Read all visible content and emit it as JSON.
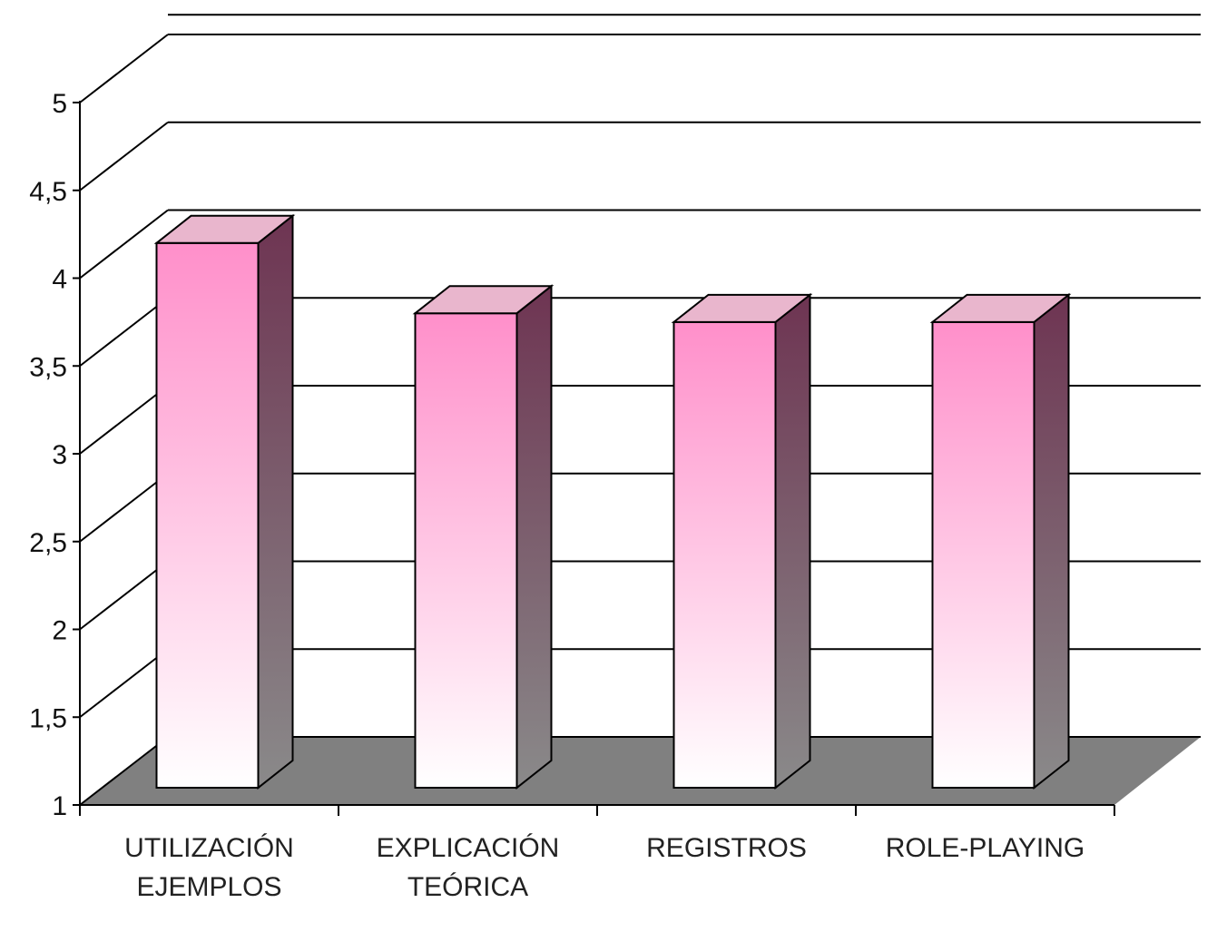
{
  "colors": {
    "bar_top": "#ff8fca",
    "bar_bottom": "#ffffff",
    "bar_side_top": "#6e3452",
    "bar_side_bottom": "#8a8a8a",
    "bar_cap": "#e9b6cd",
    "floor": "#808080",
    "grid": "#000000"
  },
  "chart_data": {
    "type": "bar",
    "style": "3d",
    "categories": [
      [
        "UTILIZACIÓN",
        "EJEMPLOS"
      ],
      [
        "EXPLICACIÓN",
        "TEÓRICA"
      ],
      [
        "REGISTROS"
      ],
      [
        "ROLE-PLAYING"
      ]
    ],
    "values": [
      4.2,
      3.8,
      3.75,
      3.75
    ],
    "ylim": [
      1,
      5
    ],
    "yticks": [
      "1",
      "1,5",
      "2",
      "2,5",
      "3",
      "3,5",
      "4",
      "4,5",
      "5"
    ],
    "grid": true,
    "legend": "none"
  }
}
